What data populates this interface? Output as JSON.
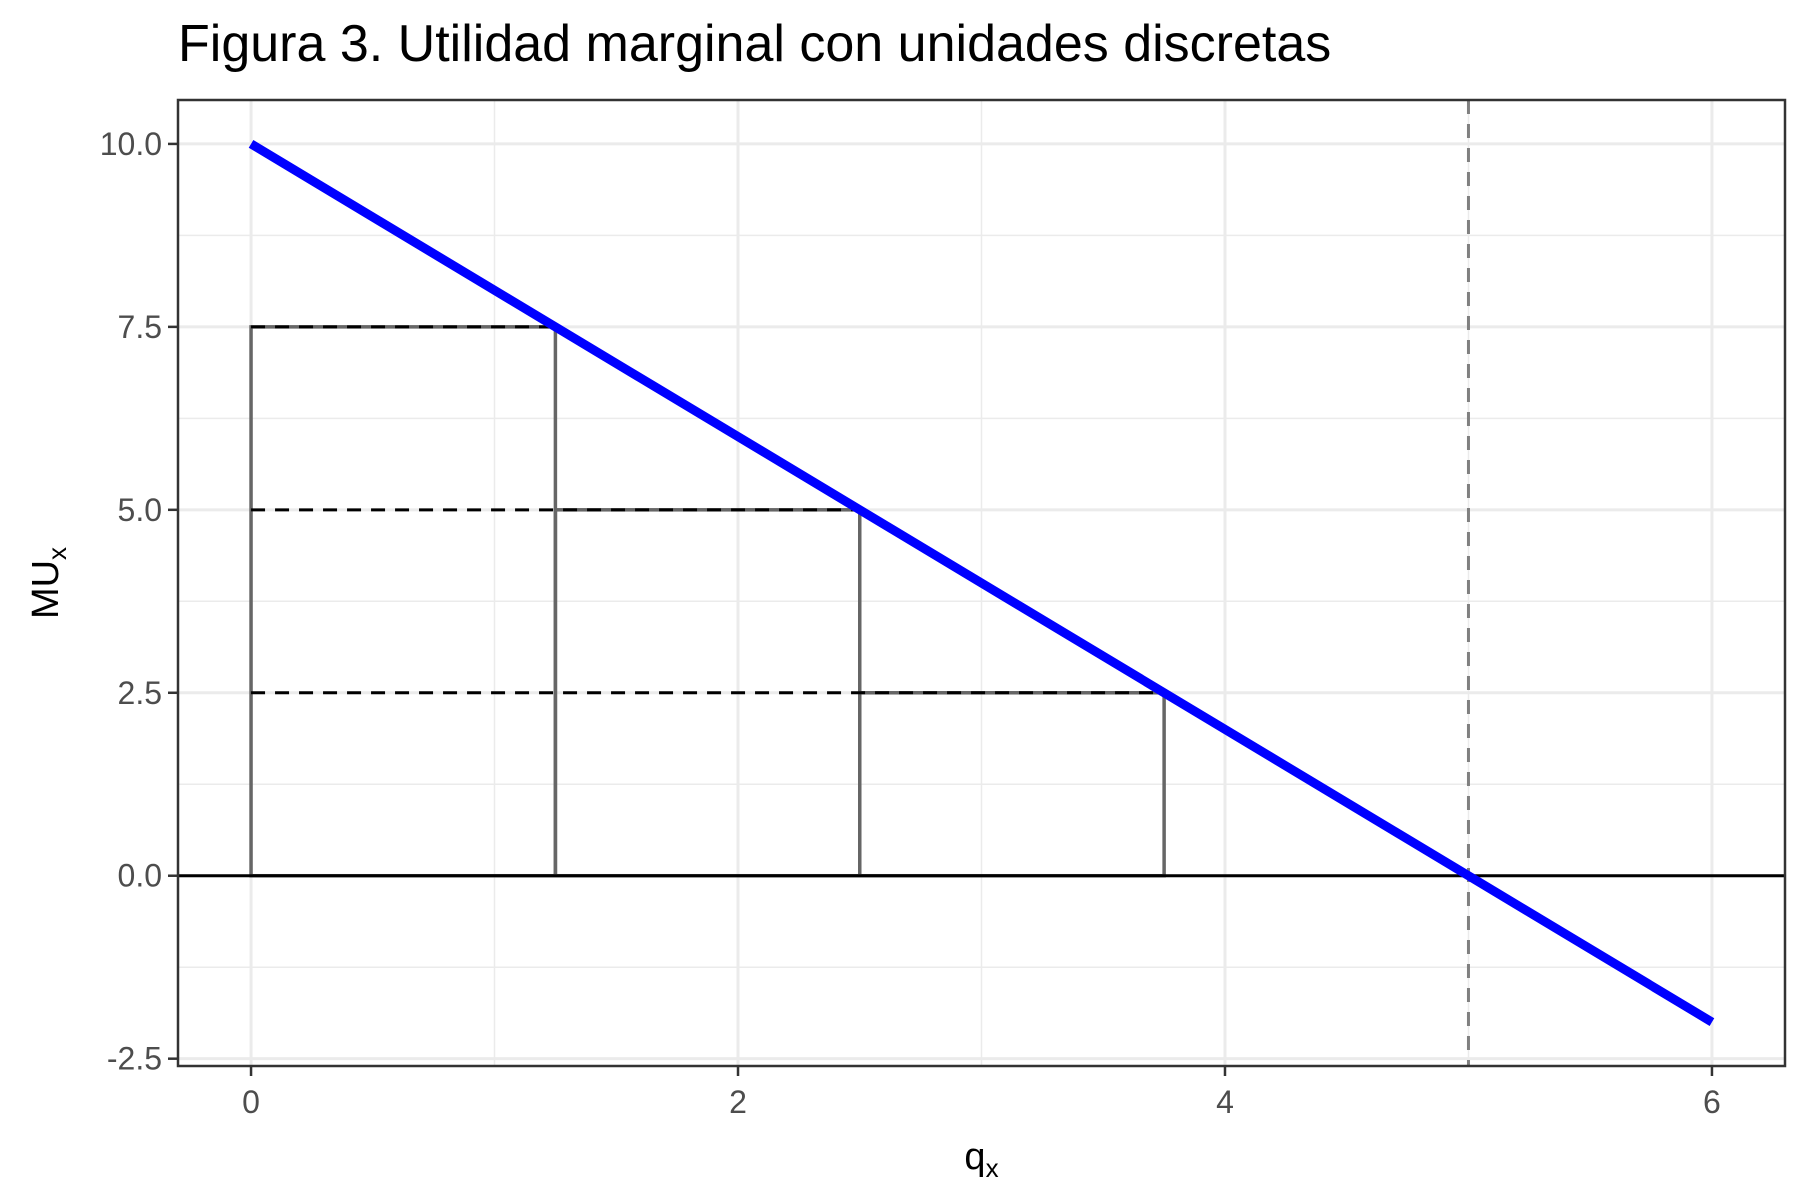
{
  "chart_data": {
    "type": "line",
    "title": "Figura 3. Utilidad marginal con unidades discretas",
    "xlabel": {
      "base": "q",
      "subscript": "x"
    },
    "ylabel": {
      "base": "MU",
      "subscript": "x"
    },
    "xlim": [
      -0.3,
      6.3
    ],
    "ylim": [
      -2.6,
      10.6
    ],
    "x_ticks": [
      0,
      2,
      4,
      6
    ],
    "x_tick_labels": [
      "0",
      "2",
      "4",
      "6"
    ],
    "y_ticks": [
      -2.5,
      0,
      2.5,
      5,
      7.5,
      10
    ],
    "y_tick_labels": [
      "-2.5",
      "0.0",
      "2.5",
      "5.0",
      "7.5",
      "10.0"
    ],
    "x_minor_ticks": [
      1,
      3,
      5
    ],
    "y_minor_ticks": [
      -1.25,
      1.25,
      3.75,
      6.25,
      8.75
    ],
    "grid": true,
    "series": [
      {
        "x": [
          0,
          6
        ],
        "y": [
          10,
          -2
        ],
        "color": "#0000ff",
        "style": "solid"
      }
    ],
    "bars": [
      {
        "x0": 0,
        "x1": 1.25,
        "height": 7.5
      },
      {
        "x0": 1.25,
        "x1": 2.5,
        "height": 5.0
      },
      {
        "x0": 2.5,
        "x1": 3.75,
        "height": 2.5
      }
    ],
    "reference_lines": [
      {
        "orientation": "horizontal",
        "value": 0,
        "style": "solid",
        "color": "#000000"
      },
      {
        "orientation": "vertical",
        "value": 5,
        "style": "dashed",
        "color": "#808080"
      }
    ],
    "dashed_guides": [
      {
        "y": 7.5,
        "x_from": 0,
        "x_to": 1.25
      },
      {
        "y": 5.0,
        "x_from": 0,
        "x_to": 2.5
      },
      {
        "y": 2.5,
        "x_from": 0,
        "x_to": 3.75
      }
    ],
    "colors": {
      "line": "#0000ff",
      "bars": "#666666",
      "guides": "#000000",
      "grid": "#ebebeb",
      "panel_border": "#333333"
    }
  }
}
